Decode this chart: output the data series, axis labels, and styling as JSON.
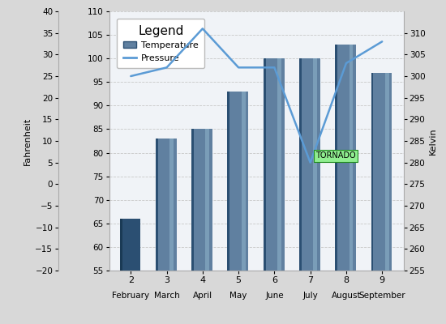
{
  "months": [
    "February",
    "March",
    "April",
    "May",
    "June",
    "July",
    "August",
    "September"
  ],
  "month_nums": [
    "2",
    "3",
    "4",
    "5",
    "6",
    "7",
    "8",
    "9"
  ],
  "bar_values_bar_scale": [
    66,
    83,
    85,
    93,
    100,
    100,
    103,
    97
  ],
  "pressure_y_kelvin": [
    300,
    302,
    311,
    302,
    302,
    280,
    303,
    308
  ],
  "bar_color_light": "#7A9DB8",
  "bar_color_medium": "#6080A0",
  "bar_color_dark": "#2B4F72",
  "line_color": "#5B9BD5",
  "background_color": "#D8D8D8",
  "plot_bg": "#F0F3F7",
  "fahrenheit_ylim": [
    -20,
    40
  ],
  "fahrenheit_yticks": [
    -20,
    -15,
    -10,
    -5,
    0,
    5,
    10,
    15,
    20,
    25,
    30,
    35,
    40
  ],
  "bar_ylim": [
    55,
    110
  ],
  "bar_yticks": [
    55,
    60,
    65,
    70,
    75,
    80,
    85,
    90,
    95,
    100,
    105,
    110
  ],
  "bar_ytick_labels": [
    "55",
    "60",
    "65",
    "70",
    "75",
    "80",
    "85",
    "90",
    "95",
    "100",
    "105",
    "110"
  ],
  "kelvin_ylim": [
    255,
    315
  ],
  "kelvin_yticks": [
    255,
    260,
    265,
    270,
    275,
    280,
    285,
    290,
    295,
    300,
    305,
    310
  ],
  "legend_title": "Legend",
  "temp_label": "Temperature",
  "pressure_label": "Pressure",
  "fahrenheit_label": "Fahrenheit",
  "kelvin_label": "Kelvin",
  "tornado_label": "TORNADO",
  "grid_color": "#C8C8C8",
  "spine_color": "#AAAAAA"
}
